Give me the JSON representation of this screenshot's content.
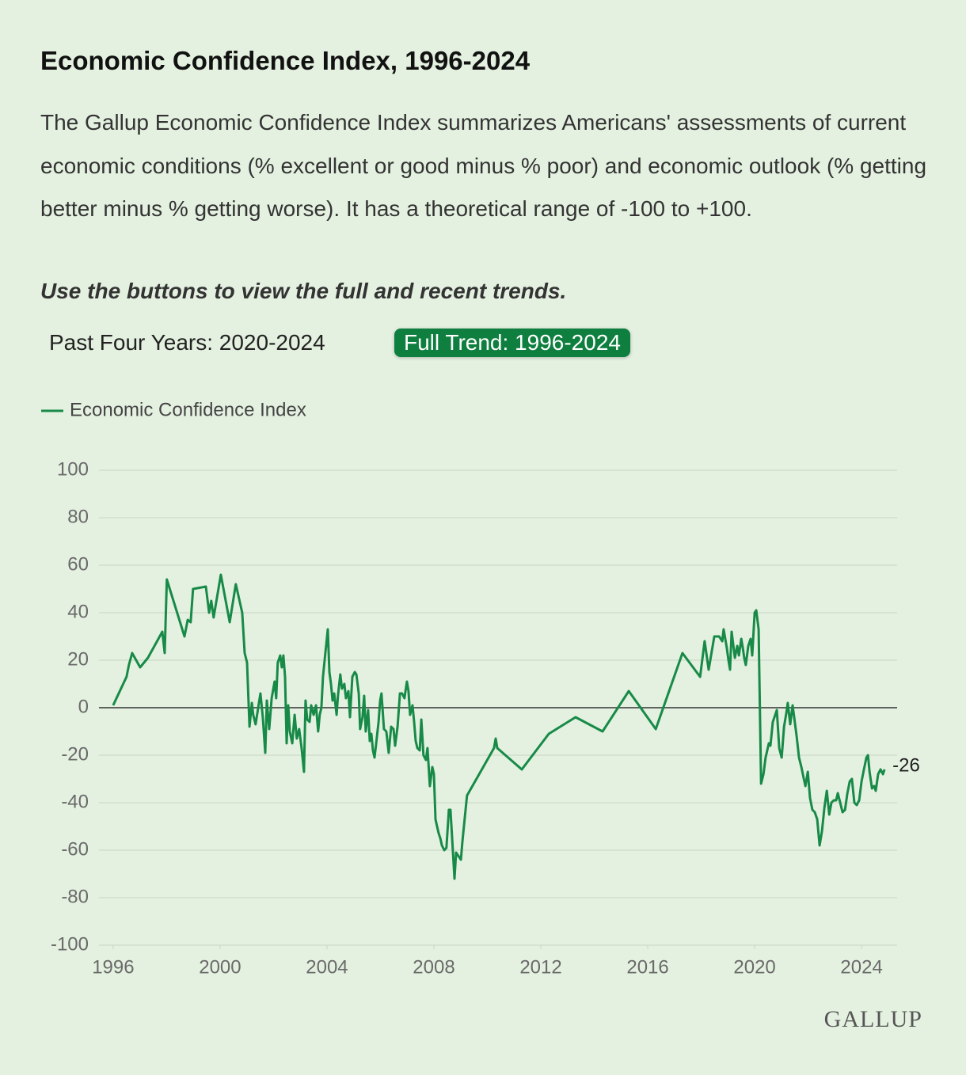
{
  "chart_data": {
    "type": "line",
    "title": "Economic Confidence Index, 1996-2024",
    "subtitle": "The Gallup Economic Confidence Index summarizes Americans' assessments of current economic conditions (% excellent or good minus % poor) and economic outlook (% getting better minus % getting worse). It has a theoretical range of -100 to +100.",
    "x": [
      1996.0,
      1996.5,
      1996.59,
      1996.71,
      1997.01,
      1997.3,
      1997.84,
      1997.93,
      1998.01,
      1998.67,
      1998.79,
      1998.9,
      1998.99,
      1999.47,
      1999.59,
      1999.67,
      1999.76,
      2000.03,
      2000.36,
      2000.59,
      2000.83,
      2000.92,
      2001.01,
      2001.1,
      2001.19,
      2001.24,
      2001.33,
      2001.51,
      2001.6,
      2001.69,
      2001.75,
      2001.84,
      2001.93,
      2002.04,
      2002.1,
      2002.16,
      2002.25,
      2002.31,
      2002.37,
      2002.43,
      2002.49,
      2002.55,
      2002.61,
      2002.7,
      2002.79,
      2002.87,
      2002.96,
      2003.05,
      2003.14,
      2003.2,
      2003.26,
      2003.35,
      2003.41,
      2003.5,
      2003.59,
      2003.67,
      2003.73,
      2003.79,
      2003.85,
      2003.94,
      2004.03,
      2004.09,
      2004.15,
      2004.21,
      2004.27,
      2004.36,
      2004.41,
      2004.5,
      2004.56,
      2004.65,
      2004.71,
      2004.8,
      2004.86,
      2004.95,
      2005.04,
      2005.1,
      2005.19,
      2005.24,
      2005.33,
      2005.39,
      2005.45,
      2005.54,
      2005.6,
      2005.66,
      2005.72,
      2005.78,
      2005.84,
      2005.93,
      2005.99,
      2006.04,
      2006.13,
      2006.22,
      2006.31,
      2006.4,
      2006.49,
      2006.55,
      2006.64,
      2006.73,
      2006.81,
      2006.9,
      2006.99,
      2007.05,
      2007.11,
      2007.2,
      2007.26,
      2007.32,
      2007.38,
      2007.47,
      2007.53,
      2007.61,
      2007.7,
      2007.76,
      2007.85,
      2007.94,
      2008.0,
      2008.06,
      2008.12,
      2008.18,
      2008.24,
      2008.3,
      2008.39,
      2008.47,
      2008.56,
      2008.62,
      2008.71,
      2008.77,
      2008.83,
      2008.89,
      2008.95,
      2009.01,
      2009.07,
      2009.24,
      2010.25,
      2010.31,
      2010.37,
      2011.29,
      2012.3,
      2013.3,
      2014.31,
      2015.29,
      2016.3,
      2017.3,
      2017.96,
      2018.13,
      2018.28,
      2018.49,
      2018.67,
      2018.79,
      2018.84,
      2018.96,
      2019.02,
      2019.08,
      2019.14,
      2019.26,
      2019.35,
      2019.41,
      2019.5,
      2019.56,
      2019.61,
      2019.67,
      2019.76,
      2019.85,
      2019.91,
      2020.0,
      2020.06,
      2020.15,
      2020.24,
      2020.33,
      2020.41,
      2020.53,
      2020.59,
      2020.68,
      2020.77,
      2020.83,
      2020.92,
      2021.01,
      2021.1,
      2021.19,
      2021.24,
      2021.33,
      2021.42,
      2021.48,
      2021.57,
      2021.66,
      2021.75,
      2021.84,
      2021.9,
      2021.99,
      2022.07,
      2022.16,
      2022.25,
      2022.34,
      2022.43,
      2022.52,
      2022.61,
      2022.7,
      2022.79,
      2022.87,
      2022.96,
      2023.05,
      2023.11,
      2023.2,
      2023.29,
      2023.38,
      2023.47,
      2023.56,
      2023.64,
      2023.73,
      2023.82,
      2023.91,
      2024.0,
      2024.09,
      2024.18,
      2024.24,
      2024.3,
      2024.39,
      2024.47,
      2024.53,
      2024.62,
      2024.71,
      2024.8,
      2024.86
    ],
    "series": [
      {
        "name": "Economic Confidence Index",
        "color": "#188a48",
        "values": [
          1,
          13,
          18,
          23,
          17,
          21,
          32,
          23,
          54,
          30,
          37,
          36,
          50,
          51,
          40,
          45,
          38,
          56,
          36,
          52,
          40,
          23,
          19,
          -8,
          2,
          -3,
          -7,
          6,
          -4,
          -19,
          3,
          -9,
          4,
          11,
          4,
          19,
          22,
          17,
          22,
          13,
          -15,
          1,
          -10,
          -15,
          -3,
          -13,
          -9,
          -17,
          -27,
          3,
          -5,
          -6,
          1,
          -3,
          1,
          -10,
          -3,
          0,
          13,
          23,
          33,
          15,
          10,
          3,
          6,
          -3,
          5,
          14,
          8,
          10,
          4,
          7,
          -4,
          13,
          15,
          14,
          6,
          -9,
          -4,
          5,
          -10,
          -1,
          -14,
          -11,
          -18,
          -21,
          -15,
          -6,
          3,
          6,
          -9,
          -10,
          -19,
          -8,
          -9,
          -16,
          -8,
          6,
          6,
          4,
          11,
          7,
          -3,
          1,
          -6,
          -14,
          -17,
          -18,
          -5,
          -20,
          -22,
          -17,
          -33,
          -25,
          -28,
          -47,
          -50,
          -53,
          -55,
          -58,
          -60,
          -59,
          -43,
          -43,
          -60,
          -72,
          -61,
          -62,
          -63,
          -64,
          -56,
          -37,
          -17,
          -13,
          -17,
          -26,
          -11,
          -4,
          -10,
          7,
          -9,
          23,
          13,
          28,
          16,
          30,
          30,
          28,
          33,
          25,
          20,
          16,
          32,
          21,
          26,
          22,
          29,
          25,
          21,
          18,
          26,
          29,
          22,
          40,
          41,
          33,
          -32,
          -28,
          -21,
          -15,
          -16,
          -6,
          -3,
          -1,
          -17,
          -21,
          -8,
          -2,
          2,
          -7,
          1,
          -4,
          -12,
          -21,
          -25,
          -30,
          -33,
          -27,
          -38,
          -43,
          -44,
          -47,
          -58,
          -52,
          -42,
          -35,
          -45,
          -40,
          -39,
          -39,
          -36,
          -40,
          -44,
          -43,
          -36,
          -31,
          -30,
          -40,
          -41,
          -39,
          -31,
          -26,
          -21,
          -20,
          -27,
          -34,
          -33,
          -35,
          -28,
          -26,
          -28,
          -26
        ]
      }
    ],
    "xlim": [
      1995.47,
      2025.33
    ],
    "xticks": [
      1996,
      2000,
      2004,
      2008,
      2012,
      2016,
      2020,
      2024
    ],
    "ylim": [
      -100,
      100
    ],
    "yticks": [
      -100,
      -80,
      -60,
      -40,
      -20,
      0,
      20,
      40,
      60,
      80,
      100
    ],
    "grid": true,
    "legend": "top-left"
  },
  "instruction": "Use the buttons to view the full and recent trends.",
  "buttons": [
    "Past Four Years: 2020-2024",
    "Full Trend: 1996-2024"
  ],
  "logo": "GALLUP"
}
